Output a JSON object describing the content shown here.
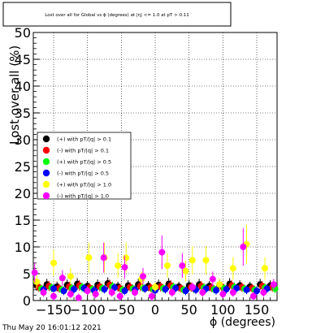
{
  "chart_data": {
    "type": "scatter",
    "title": "Lost over all for Global vs ϕ (degrees) at |η| <= 1.0 at pT > 0.11",
    "xlabel": "ϕ (degrees)",
    "ylabel": "Lost over all (%)",
    "xlim": [
      -180,
      180
    ],
    "ylim": [
      0,
      50
    ],
    "x_ticks": [
      -150,
      -100,
      -50,
      0,
      50,
      100,
      150
    ],
    "x_tick_labels": [
      "−150",
      "−100",
      "−50",
      "0",
      "50",
      "100",
      "150"
    ],
    "y_ticks": [
      0,
      5,
      10,
      15,
      20,
      25,
      30,
      35,
      40,
      45,
      50
    ],
    "y_tick_labels": [
      "0",
      "5",
      "10",
      "15",
      "20",
      "25",
      "30",
      "35",
      "40",
      "45",
      "50"
    ],
    "grid": true,
    "legend_position": "left-middle",
    "timestamp": "Thu May 20 16:01:12 2021",
    "series": [
      {
        "name": "(+) with pT/|q| > 0.1",
        "color": "#000000",
        "marker": "circle",
        "x": [
          -175,
          -160,
          -145,
          -130,
          -115,
          -100,
          -85,
          -70,
          -55,
          -40,
          -25,
          -10,
          5,
          20,
          35,
          50,
          65,
          80,
          95,
          110,
          125,
          140,
          155,
          170
        ],
        "y": [
          2.8,
          3.0,
          2.6,
          2.9,
          3.1,
          2.7,
          2.9,
          3.2,
          2.6,
          2.8,
          3.0,
          2.7,
          2.9,
          3.1,
          2.6,
          2.8,
          3.0,
          2.7,
          2.9,
          3.1,
          2.8,
          2.6,
          3.0,
          2.8
        ]
      },
      {
        "name": "(-) with pT/|q| > 0.1",
        "color": "#ff0000",
        "marker": "circle",
        "x": [
          -172,
          -157,
          -142,
          -127,
          -112,
          -97,
          -82,
          -67,
          -52,
          -37,
          -22,
          -7,
          8,
          23,
          38,
          53,
          68,
          83,
          98,
          113,
          128,
          143,
          158,
          173
        ],
        "y": [
          2.5,
          2.7,
          2.3,
          2.6,
          2.8,
          2.4,
          2.6,
          2.9,
          2.3,
          2.5,
          2.7,
          2.4,
          2.6,
          2.8,
          2.3,
          2.5,
          2.7,
          2.4,
          2.6,
          2.8,
          2.5,
          2.3,
          2.7,
          2.5
        ]
      },
      {
        "name": "(+) with pT/|q| > 0.5",
        "color": "#00ff00",
        "marker": "circle",
        "x": [
          -168,
          -153,
          -138,
          -123,
          -108,
          -93,
          -78,
          -63,
          -48,
          -33,
          -18,
          -3,
          12,
          27,
          42,
          57,
          72,
          87,
          102,
          117,
          132,
          147,
          162,
          177
        ],
        "y": [
          2.2,
          2.4,
          2.0,
          2.3,
          2.5,
          2.1,
          2.3,
          2.6,
          2.0,
          2.2,
          2.4,
          2.1,
          2.3,
          2.5,
          2.0,
          2.2,
          2.4,
          2.1,
          2.3,
          2.5,
          2.2,
          2.0,
          2.4,
          2.2
        ]
      },
      {
        "name": "(-) with pT/|q| > 0.5",
        "color": "#0000ff",
        "marker": "circle",
        "x": [
          -165,
          -150,
          -135,
          -120,
          -105,
          -90,
          -75,
          -60,
          -45,
          -30,
          -15,
          0,
          15,
          30,
          45,
          60,
          75,
          90,
          105,
          120,
          135,
          150,
          165
        ],
        "y": [
          2.0,
          2.2,
          1.8,
          2.1,
          2.3,
          1.9,
          2.1,
          2.4,
          1.8,
          2.0,
          2.2,
          1.9,
          2.1,
          2.3,
          1.8,
          2.0,
          2.2,
          1.9,
          2.1,
          2.3,
          2.0,
          1.8,
          2.2
        ]
      },
      {
        "name": "(+) with pT/|q| > 1.0",
        "color": "#ffff00",
        "marker": "circle",
        "x": [
          -175,
          -150,
          -125,
          -98,
          -75,
          -55,
          -43,
          -20,
          0,
          18,
          45,
          55,
          75,
          95,
          115,
          135,
          162
        ],
        "y": [
          3.5,
          7.0,
          4.5,
          8.0,
          8.0,
          6.5,
          8.0,
          4.0,
          2.5,
          6.5,
          5.5,
          7.5,
          7.5,
          3.0,
          6.0,
          10.5,
          6.0
        ]
      },
      {
        "name": "(-) with pT/|q| > 1.0",
        "color": "#ff00ff",
        "marker": "circle",
        "x": [
          -178,
          -165,
          -150,
          -137,
          -125,
          -113,
          -100,
          -88,
          -76,
          -64,
          -52,
          -45,
          -30,
          -18,
          -5,
          10,
          25,
          40,
          55,
          70,
          85,
          100,
          115,
          130,
          145,
          160,
          175
        ],
        "y": [
          5.2,
          1.5,
          0.8,
          4.2,
          1.2,
          0.5,
          1.8,
          1.2,
          8.0,
          1.5,
          0.8,
          6.2,
          1.5,
          4.5,
          0.8,
          9.0,
          1.5,
          6.5,
          2.5,
          1.5,
          4.0,
          1.2,
          1.5,
          10.0,
          0.8,
          1.5,
          3.0
        ]
      }
    ]
  }
}
